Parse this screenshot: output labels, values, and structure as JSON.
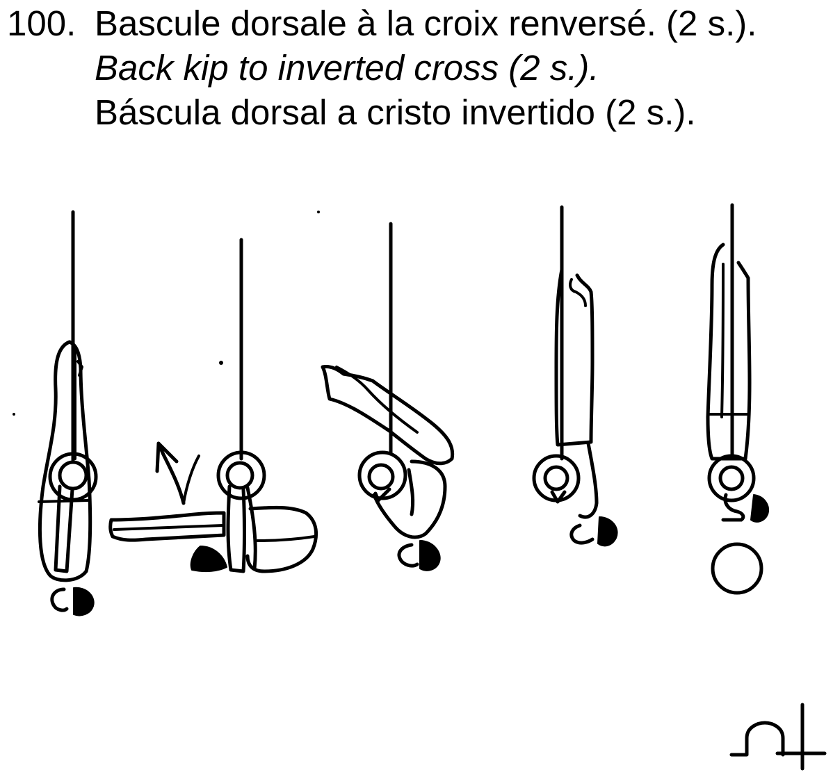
{
  "skill": {
    "number": "100.",
    "title_fr": "Bascule dorsale à la croix renversé. (2 s.).",
    "title_en": "Back kip to inverted cross (2 s.).",
    "title_es": "Báscula dorsal a cristo invertido (2 s.)."
  },
  "figure": {
    "phases": [
      "hang",
      "pike-back-swing",
      "kip",
      "extension",
      "inverted-cross"
    ],
    "symbol": "difficulty-symbol"
  },
  "colors": {
    "ink": "#000000",
    "background": "#ffffff"
  }
}
